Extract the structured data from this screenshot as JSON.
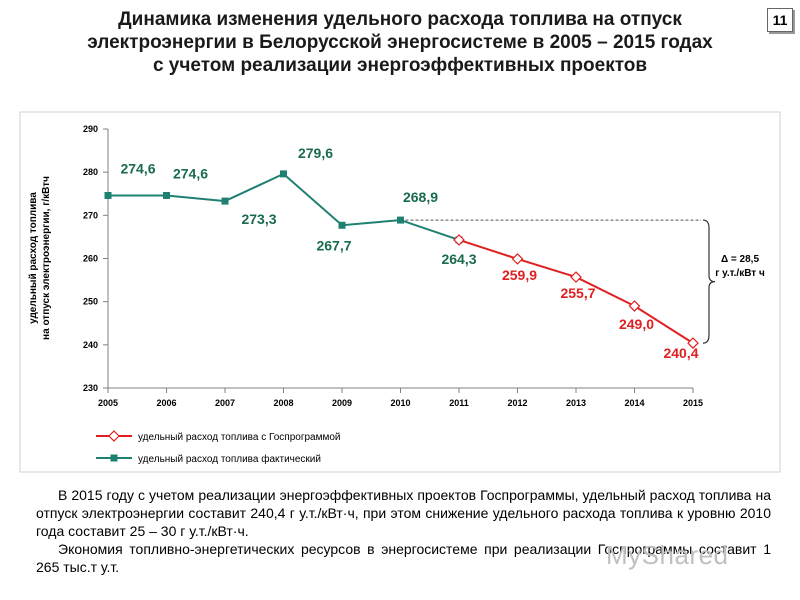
{
  "page": {
    "title_lines": [
      "Динамика изменения удельного расхода топлива на отпуск",
      "электроэнергии в Белорусской энергосистеме в 2005 – 2015 годах",
      "с учетом реализации энергоэффективных проектов"
    ],
    "slide_number": "11",
    "paragraph1": "В 2015 году с учетом реализации энергоэффективных проектов Госпрограммы, удельный расход топлива на отпуск электроэнергии составит 240,4 г у.т./кВт·ч, при этом снижение удельного расхода топлива к уровню 2010 года составит 25 – 30 г у.т./кВт·ч.",
    "paragraph2": "Экономия топливно-энергетических ресурсов в энергосистеме при реализации Госпрограммы составит 1 265 тыс.т у.т.",
    "watermark": "MyShared"
  },
  "chart_data": {
    "type": "line",
    "ylabel_lines": [
      "удельный расход топлива",
      "на отпуск электроэнергии, г/кВтч"
    ],
    "categories": [
      "2005",
      "2006",
      "2007",
      "2008",
      "2009",
      "2010",
      "2011",
      "2012",
      "2013",
      "2014",
      "2015"
    ],
    "yticks": [
      "230",
      "240",
      "250",
      "260",
      "270",
      "280",
      "290"
    ],
    "ylim": [
      230,
      290
    ],
    "grid": false,
    "series": [
      {
        "name": "удельный расход топлива фактический",
        "color": "#1e8070",
        "marker": "square",
        "x": [
          "2005",
          "2006",
          "2007",
          "2008",
          "2009",
          "2010",
          "2011"
        ],
        "values": [
          274.6,
          274.6,
          273.3,
          279.6,
          267.7,
          268.9,
          264.3
        ],
        "labels": [
          "274,6",
          "274,6",
          "273,3",
          "279,6",
          "267,7",
          "268,9",
          "264,3"
        ]
      },
      {
        "name": "удельный расход топлива с Госпрограммой",
        "color": "#e02020",
        "marker": "diamond",
        "x": [
          "2011",
          "2012",
          "2013",
          "2014",
          "2015"
        ],
        "values": [
          264.3,
          259.9,
          255.7,
          249.0,
          240.4
        ],
        "labels": [
          "",
          "259,9",
          "255,7",
          "249,0",
          "240,4"
        ]
      }
    ],
    "delta_annotation": [
      "Δ = 28,5",
      "г у.т./кВт ч"
    ],
    "legend_position": "bottom-left"
  }
}
